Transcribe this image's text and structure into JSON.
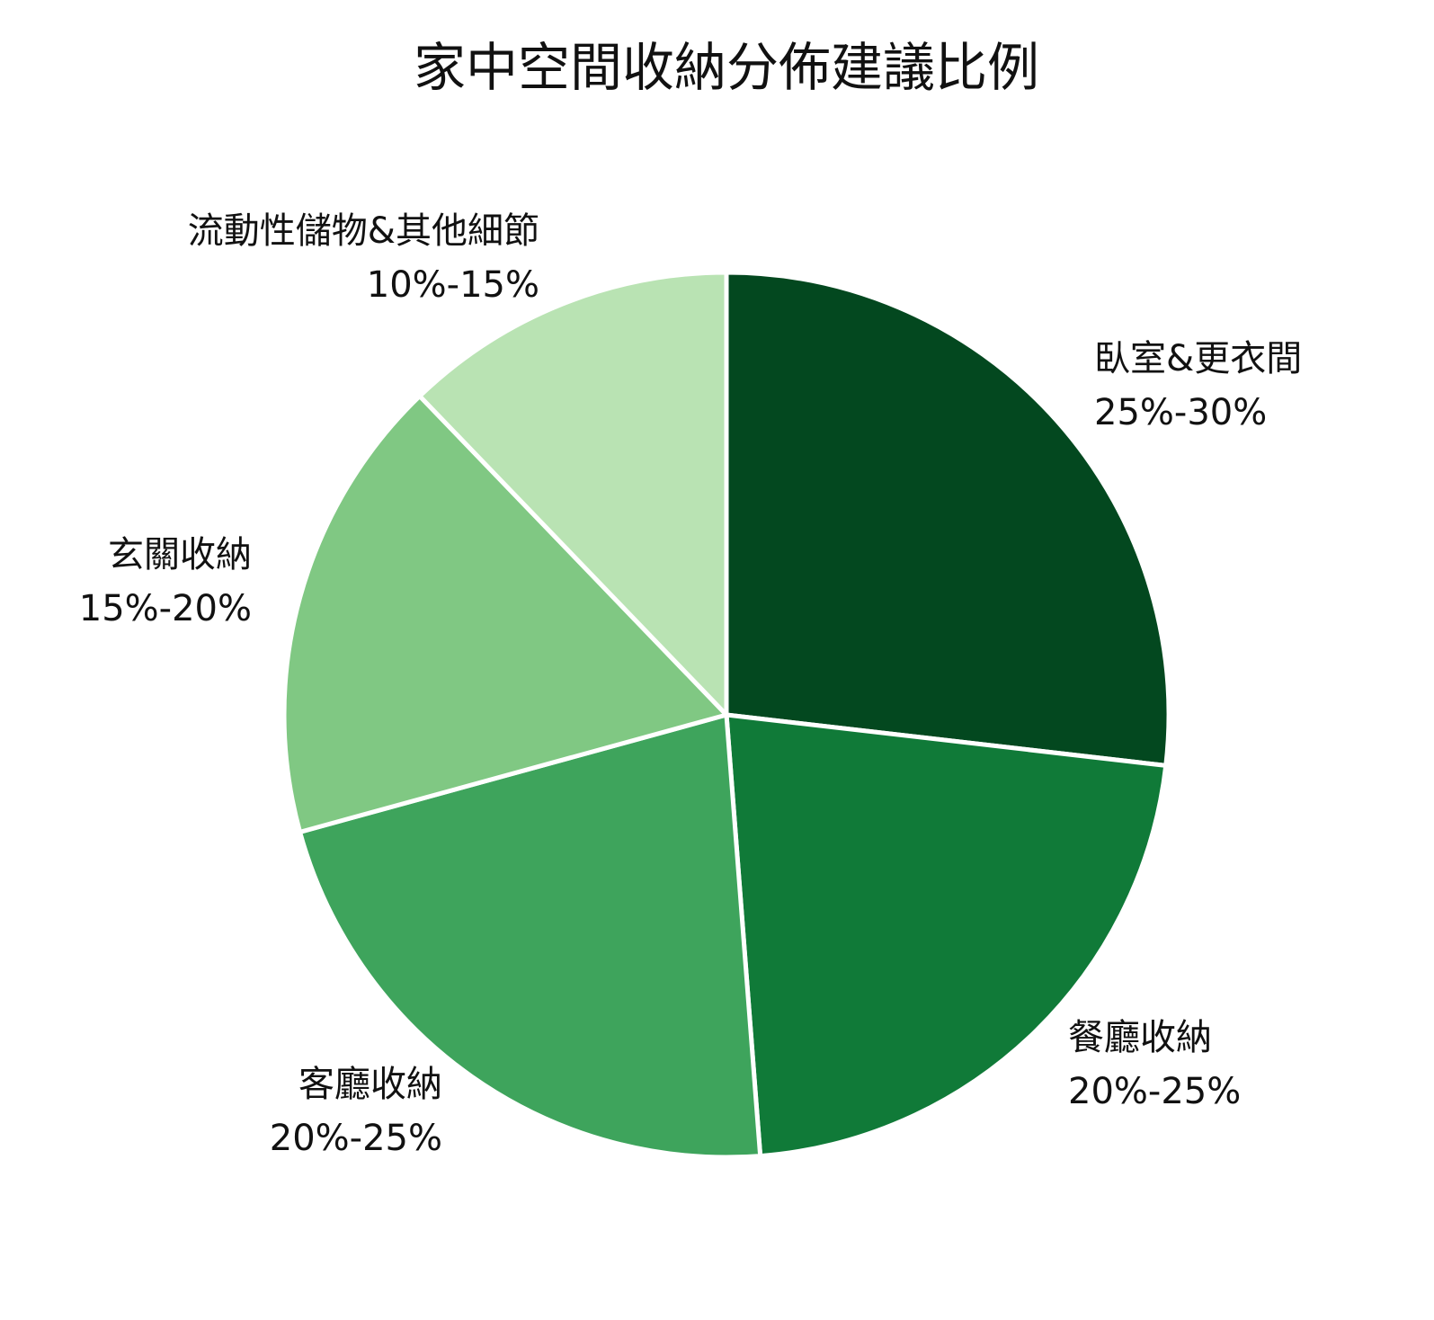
{
  "chart_data": {
    "type": "pie",
    "title": "家中空間收納分佈建議比例",
    "start_angle_deg": 0,
    "direction": "clockwise",
    "slices": [
      {
        "label": "臥室&更衣間",
        "range": "25%-30%",
        "value": 27.5,
        "color": "#03481f"
      },
      {
        "label": "餐廳收納",
        "range": "20%-25%",
        "value": 22.5,
        "color": "#107a38"
      },
      {
        "label": "客廳收納",
        "range": "20%-25%",
        "value": 22.5,
        "color": "#3ea45c"
      },
      {
        "label": "玄關收納",
        "range": "15%-20%",
        "value": 17.5,
        "color": "#80c883"
      },
      {
        "label": "流動性儲物&其他細節",
        "range": "10%-15%",
        "value": 12.5,
        "color": "#b9e3b3"
      }
    ]
  }
}
